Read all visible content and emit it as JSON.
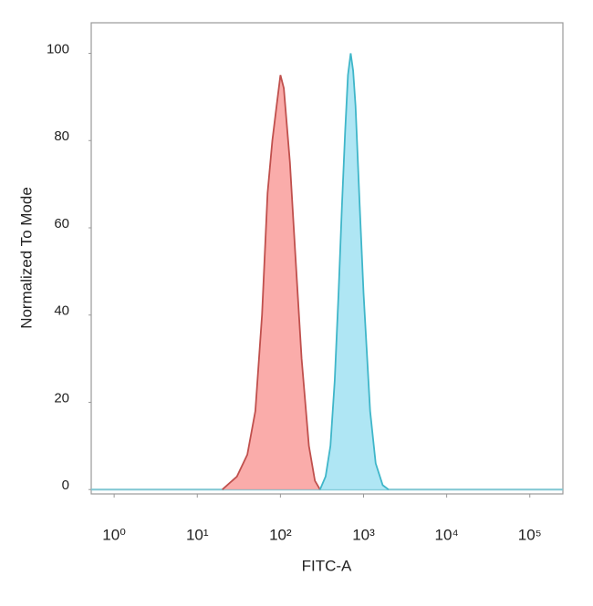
{
  "chart_data": {
    "type": "area",
    "x_label": "FITC-A",
    "y_label": "Normalized To Mode",
    "xscale": "log",
    "xlim": [
      0.53,
      250000
    ],
    "xticks": [
      {
        "value": 1,
        "label": "10⁰"
      },
      {
        "value": 10,
        "label": "10¹"
      },
      {
        "value": 100,
        "label": "10²"
      },
      {
        "value": 1000,
        "label": "10³"
      },
      {
        "value": 10000,
        "label": "10⁴"
      },
      {
        "value": 100000,
        "label": "10⁵"
      }
    ],
    "ylim": [
      -1,
      107
    ],
    "yticks": [
      0,
      20,
      40,
      60,
      80,
      100
    ],
    "grid": false,
    "series": [
      {
        "color": "#c0504d",
        "fill": "#f9a3a1",
        "x": [
          20,
          30,
          40,
          50,
          60,
          70,
          80,
          90,
          100,
          110,
          130,
          150,
          180,
          220,
          260,
          300
        ],
        "values": [
          0,
          3,
          8,
          18,
          40,
          68,
          80,
          88,
          95,
          92,
          75,
          55,
          30,
          10,
          2,
          0
        ]
      },
      {
        "color": "#3fb6c9",
        "fill": "#a6e3f3",
        "x": [
          300,
          350,
          400,
          450,
          500,
          550,
          600,
          650,
          700,
          750,
          800,
          900,
          1000,
          1200,
          1400,
          1700,
          2000
        ],
        "values": [
          0,
          3,
          10,
          25,
          45,
          65,
          82,
          95,
          100,
          96,
          88,
          65,
          45,
          18,
          6,
          1,
          0
        ]
      }
    ]
  }
}
